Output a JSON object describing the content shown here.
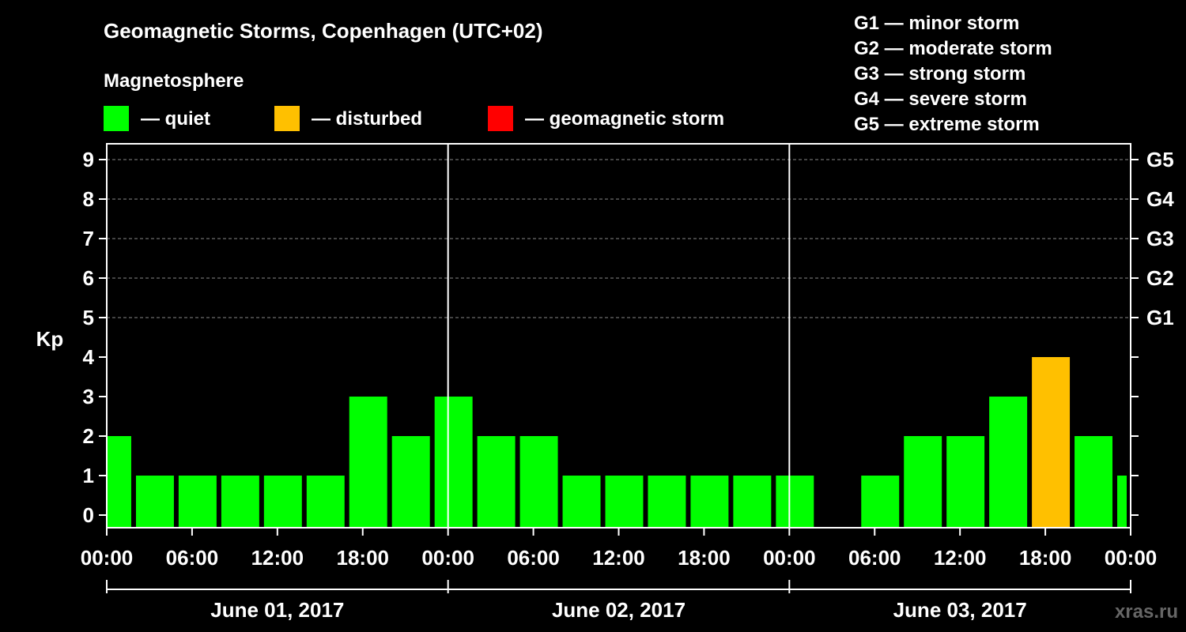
{
  "header": {
    "title": "Geomagnetic Storms, Copenhagen (UTC+02)",
    "magnetosphere_label": "Magnetosphere"
  },
  "legend": {
    "items": [
      {
        "label": "— quiet",
        "color": "#00ff00"
      },
      {
        "label": "— disturbed",
        "color": "#ffc000"
      },
      {
        "label": "— geomagnetic storm",
        "color": "#ff0000"
      }
    ]
  },
  "storm_scale": [
    "G1 — minor storm",
    "G2 — moderate storm",
    "G3 — strong storm",
    "G4 — severe storm",
    "G5 — extreme storm"
  ],
  "watermark": "xras.ru",
  "chart_data": {
    "type": "bar",
    "title": "Geomagnetic Storms, Copenhagen (UTC+02)",
    "ylabel": "Kp",
    "xlabel": "",
    "ylim": [
      0,
      9
    ],
    "y_ticks": [
      "0",
      "1",
      "2",
      "3",
      "4",
      "5",
      "6",
      "7",
      "8",
      "9"
    ],
    "right_axis_ticks": [
      {
        "kp": 5,
        "label": "G1"
      },
      {
        "kp": 6,
        "label": "G2"
      },
      {
        "kp": 7,
        "label": "G3"
      },
      {
        "kp": 8,
        "label": "G4"
      },
      {
        "kp": 9,
        "label": "G5"
      }
    ],
    "x_range_hours": [
      0,
      72
    ],
    "x_tick_labels": [
      "00:00",
      "06:00",
      "12:00",
      "18:00",
      "00:00",
      "06:00",
      "12:00",
      "18:00",
      "00:00",
      "06:00",
      "12:00",
      "18:00",
      "00:00"
    ],
    "days": [
      "June 01, 2017",
      "June 02, 2017",
      "June 03, 2017"
    ],
    "grid": "dashed horizontal lines at Kp 5–9",
    "bars": [
      {
        "start_hour": 0,
        "end_hour": 2,
        "kp": 2,
        "level": "quiet"
      },
      {
        "start_hour": 2,
        "end_hour": 5,
        "kp": 1,
        "level": "quiet"
      },
      {
        "start_hour": 5,
        "end_hour": 8,
        "kp": 1,
        "level": "quiet"
      },
      {
        "start_hour": 8,
        "end_hour": 11,
        "kp": 1,
        "level": "quiet"
      },
      {
        "start_hour": 11,
        "end_hour": 14,
        "kp": 1,
        "level": "quiet"
      },
      {
        "start_hour": 14,
        "end_hour": 17,
        "kp": 1,
        "level": "quiet"
      },
      {
        "start_hour": 17,
        "end_hour": 20,
        "kp": 3,
        "level": "quiet"
      },
      {
        "start_hour": 20,
        "end_hour": 23,
        "kp": 2,
        "level": "quiet"
      },
      {
        "start_hour": 23,
        "end_hour": 26,
        "kp": 3,
        "level": "quiet"
      },
      {
        "start_hour": 26,
        "end_hour": 29,
        "kp": 2,
        "level": "quiet"
      },
      {
        "start_hour": 29,
        "end_hour": 32,
        "kp": 2,
        "level": "quiet"
      },
      {
        "start_hour": 32,
        "end_hour": 35,
        "kp": 1,
        "level": "quiet"
      },
      {
        "start_hour": 35,
        "end_hour": 38,
        "kp": 1,
        "level": "quiet"
      },
      {
        "start_hour": 38,
        "end_hour": 41,
        "kp": 1,
        "level": "quiet"
      },
      {
        "start_hour": 41,
        "end_hour": 44,
        "kp": 1,
        "level": "quiet"
      },
      {
        "start_hour": 44,
        "end_hour": 47,
        "kp": 1,
        "level": "quiet"
      },
      {
        "start_hour": 47,
        "end_hour": 50,
        "kp": 1,
        "level": "quiet"
      },
      {
        "start_hour": 50,
        "end_hour": 53,
        "kp": 0,
        "level": "quiet"
      },
      {
        "start_hour": 53,
        "end_hour": 56,
        "kp": 1,
        "level": "quiet"
      },
      {
        "start_hour": 56,
        "end_hour": 59,
        "kp": 2,
        "level": "quiet"
      },
      {
        "start_hour": 59,
        "end_hour": 62,
        "kp": 2,
        "level": "quiet"
      },
      {
        "start_hour": 62,
        "end_hour": 65,
        "kp": 3,
        "level": "quiet"
      },
      {
        "start_hour": 65,
        "end_hour": 68,
        "kp": 4,
        "level": "disturbed"
      },
      {
        "start_hour": 68,
        "end_hour": 71,
        "kp": 2,
        "level": "quiet"
      },
      {
        "start_hour": 71,
        "end_hour": 72,
        "kp": 1,
        "level": "quiet"
      }
    ]
  }
}
